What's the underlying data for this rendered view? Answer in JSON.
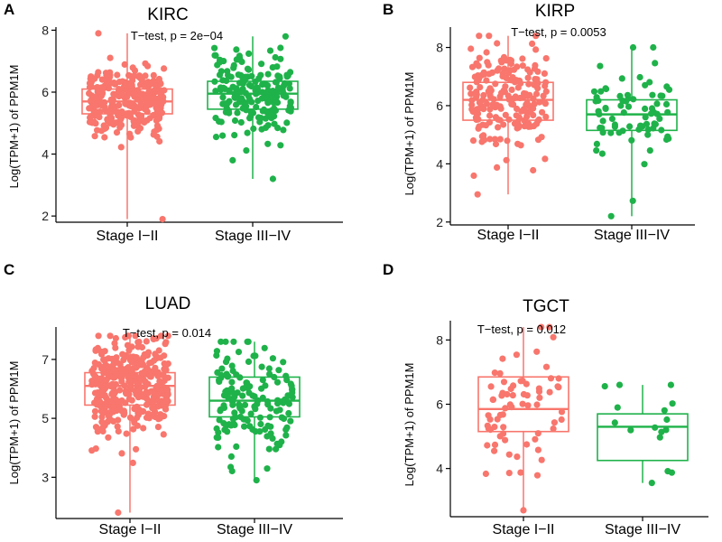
{
  "colors": {
    "early": "#f8766d",
    "late": "#1fb24a",
    "axis": "#000000"
  },
  "chart_data": [
    {
      "panel": "A",
      "type": "boxplot",
      "title": "KIRC",
      "annotation": "T−test, p = 2e−04",
      "ylabel": "Log(TPM+1) of PPM1M",
      "categories": [
        "Stage I−II",
        "Stage III−IV"
      ],
      "yticks": [
        2,
        4,
        6,
        8
      ],
      "ylim": [
        1.8,
        8.1
      ],
      "boxes": [
        {
          "min": 1.9,
          "q1": 5.3,
          "median": 5.7,
          "q3": 6.1,
          "max": 7.9,
          "n": 300
        },
        {
          "min": 3.2,
          "q1": 5.45,
          "median": 5.95,
          "q3": 6.35,
          "max": 7.8,
          "n": 200
        }
      ]
    },
    {
      "panel": "B",
      "type": "boxplot",
      "title": "KIRP",
      "annotation": "T−test, p = 0.0053",
      "ylabel": "Log(TPM+1) of PPM1M",
      "categories": [
        "Stage I−II",
        "Stage III−IV"
      ],
      "yticks": [
        2,
        4,
        6,
        8
      ],
      "ylim": [
        1.9,
        8.7
      ],
      "boxes": [
        {
          "min": 2.95,
          "q1": 5.5,
          "median": 6.2,
          "q3": 6.8,
          "max": 8.4,
          "n": 200
        },
        {
          "min": 2.2,
          "q1": 5.15,
          "median": 5.7,
          "q3": 6.2,
          "max": 8.0,
          "n": 75
        }
      ]
    },
    {
      "panel": "C",
      "type": "boxplot",
      "title": "LUAD",
      "annotation": "T−test, p = 0.014",
      "ylabel": "Log(TPM+1) of PPM1M",
      "categories": [
        "Stage I−II",
        "Stage III−IV"
      ],
      "yticks": [
        3,
        5,
        7
      ],
      "ylim": [
        1.6,
        8.1
      ],
      "boxes": [
        {
          "min": 1.8,
          "q1": 5.45,
          "median": 6.1,
          "q3": 6.55,
          "max": 7.8,
          "n": 400
        },
        {
          "min": 2.9,
          "q1": 5.05,
          "median": 5.6,
          "q3": 6.4,
          "max": 7.6,
          "n": 150
        }
      ]
    },
    {
      "panel": "D",
      "type": "boxplot",
      "title": "TGCT",
      "annotation": "T−test, p = 0.012",
      "ylabel": "Log(TPM+1) of PPM1M",
      "categories": [
        "Stage I−II",
        "Stage III−IV"
      ],
      "yticks": [
        4,
        6,
        8
      ],
      "ylim": [
        2.5,
        8.6
      ],
      "boxes": [
        {
          "min": 2.7,
          "q1": 5.15,
          "median": 5.85,
          "q3": 6.85,
          "max": 8.4,
          "n": 70
        },
        {
          "min": 3.55,
          "q1": 4.25,
          "median": 5.3,
          "q3": 5.7,
          "max": 6.6,
          "n": 16
        }
      ]
    }
  ]
}
